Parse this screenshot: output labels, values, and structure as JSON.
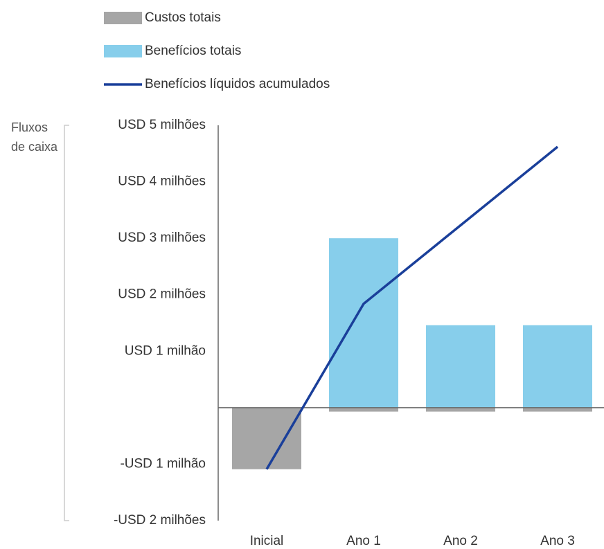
{
  "chart_data": {
    "type": "bar-line",
    "y_label": "Fluxos de caixa",
    "categories": [
      "Inicial",
      "Ano 1",
      "Ano 2",
      "Ano 3"
    ],
    "series": [
      {
        "name": "Custos totais",
        "type": "bar",
        "color": "#a6a6a6",
        "values": [
          -1.09,
          -0.07,
          -0.07,
          -0.07
        ]
      },
      {
        "name": "Benefícios totais",
        "type": "bar",
        "color": "#87ceeb",
        "values": [
          0,
          3.0,
          1.46,
          1.46
        ]
      },
      {
        "name": "Benefícios líquidos acumulados",
        "type": "line",
        "color": "#1a3f9a",
        "values": [
          -1.09,
          1.84,
          3.23,
          4.62
        ]
      }
    ],
    "ylim": [
      -2,
      5
    ],
    "yticks": [
      {
        "value": 5,
        "label": "USD 5 milhões"
      },
      {
        "value": 4,
        "label": "USD 4 milhões"
      },
      {
        "value": 3,
        "label": "USD 3 milhões"
      },
      {
        "value": 2,
        "label": "USD 2 milhões"
      },
      {
        "value": 1,
        "label": "USD 1 milhão"
      },
      {
        "value": -1,
        "label": "-USD 1 milhão"
      },
      {
        "value": -2,
        "label": "-USD 2 milhões"
      }
    ],
    "legend": "top-left"
  }
}
